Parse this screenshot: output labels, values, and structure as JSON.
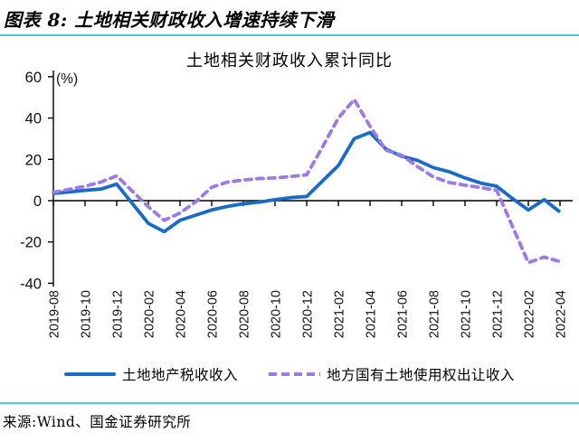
{
  "header": {
    "title": "图表 8:  土地相关财政收入增速持续下滑"
  },
  "footer": {
    "source": "来源:Wind、国金证券研究所"
  },
  "accent_colors": {
    "rule_cyan": "#4fc3f0",
    "line_blue": "#1a6bc8",
    "line_purple": "#9b79e6"
  },
  "chart_data": {
    "type": "line",
    "title": "土地相关财政收入累计同比",
    "unit_label": "(%)",
    "ylim": [
      -40,
      60
    ],
    "y_ticks": [
      60,
      40,
      20,
      0,
      -20,
      -40
    ],
    "grid": false,
    "legend_position": "bottom",
    "x_tick_every": 2,
    "months": [
      "2019-08",
      "2019-09",
      "2019-10",
      "2019-11",
      "2019-12",
      "2020-01",
      "2020-02",
      "2020-03",
      "2020-04",
      "2020-05",
      "2020-06",
      "2020-07",
      "2020-08",
      "2020-09",
      "2020-10",
      "2020-11",
      "2020-12",
      "2021-01",
      "2021-02",
      "2021-03",
      "2021-04",
      "2021-05",
      "2021-06",
      "2021-07",
      "2021-08",
      "2021-09",
      "2021-10",
      "2021-11",
      "2021-12",
      "2022-01",
      "2022-02",
      "2022-03",
      "2022-04"
    ],
    "series": [
      {
        "name": "土地地产税收收入",
        "color": "#1a6bc8",
        "style": "solid",
        "values": [
          3.5,
          4.2,
          5.0,
          5.6,
          8.0,
          -1.5,
          -11.0,
          -15.0,
          -9.5,
          -7.0,
          -4.5,
          -2.8,
          -1.5,
          -0.7,
          0.5,
          1.5,
          2.0,
          9.5,
          17.0,
          30.0,
          33.0,
          25.0,
          21.5,
          19.5,
          16.0,
          14.0,
          11.0,
          8.5,
          7.0,
          1.0,
          -4.5,
          0.5,
          -5.5
        ]
      },
      {
        "name": "地方国有土地使用权出让收入",
        "color": "#9b79e6",
        "style": "dashed",
        "values": [
          4.0,
          5.5,
          7.0,
          9.0,
          12.0,
          4.5,
          -3.0,
          -9.5,
          -6.0,
          -0.5,
          6.5,
          9.0,
          10.0,
          10.7,
          11.0,
          11.7,
          12.5,
          26.0,
          40.0,
          49.0,
          36.0,
          24.5,
          22.0,
          16.5,
          11.5,
          8.8,
          7.5,
          6.3,
          5.0,
          -12.5,
          -30.0,
          -27.3,
          -29.5
        ]
      }
    ]
  }
}
